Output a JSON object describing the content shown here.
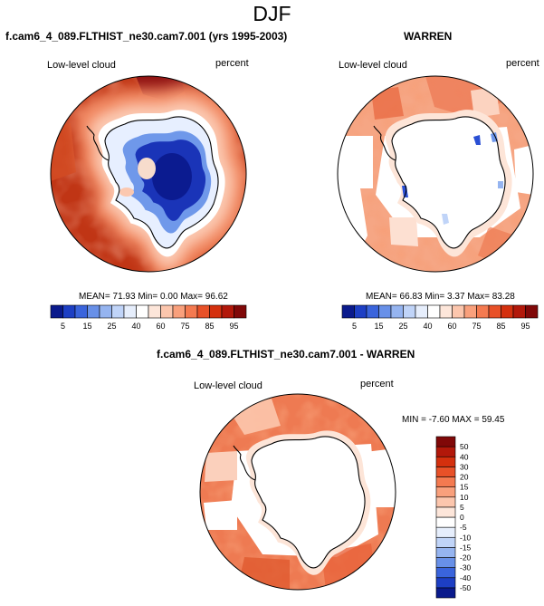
{
  "page_title": "DJF",
  "panels": [
    {
      "title": "f.cam6_4_089.FLTHIST_ne30.cam7.001 (yrs 1995-2003)",
      "left_label": "Low-level cloud",
      "right_label": "percent",
      "stats": "MEAN= 71.93 Min= 0.00 Max= 96.62"
    },
    {
      "title": "WARREN",
      "left_label": "Low-level cloud",
      "right_label": "percent",
      "stats": "MEAN= 66.83 Min= 3.37 Max= 83.28"
    },
    {
      "title": "f.cam6_4_089.FLTHIST_ne30.cam7.001 - WARREN",
      "left_label": "Low-level cloud",
      "right_label": "percent",
      "stats": "MIN = -7.60 MAX = 59.45"
    }
  ],
  "chart_data": [
    {
      "type": "heatmap",
      "projection": "south-polar-stereographic",
      "title": "f.cam6_4_089.FLTHIST_ne30.cam7.001 (yrs 1995-2003)",
      "variable": "Low-level cloud",
      "units": "percent",
      "mean": 71.93,
      "min": 0.0,
      "max": 96.62,
      "colorbar": {
        "orientation": "horizontal",
        "levels": [
          5,
          10,
          15,
          20,
          25,
          30,
          40,
          50,
          60,
          70,
          75,
          80,
          85,
          90,
          95
        ],
        "tick_labels": [
          "5",
          "15",
          "25",
          "40",
          "60",
          "75",
          "85",
          "95"
        ],
        "colors": [
          "#0a1a8c",
          "#1d3fc4",
          "#3a64dc",
          "#6890e8",
          "#95b4f0",
          "#c0d4f8",
          "#e6eefc",
          "#ffffff",
          "#fde6da",
          "#fcc6ad",
          "#f9a07c",
          "#f47a50",
          "#e85128",
          "#d4300e",
          "#b2180a",
          "#800808"
        ]
      }
    },
    {
      "type": "heatmap",
      "projection": "south-polar-stereographic",
      "title": "WARREN",
      "variable": "Low-level cloud",
      "units": "percent",
      "mean": 66.83,
      "min": 3.37,
      "max": 83.28,
      "colorbar": {
        "orientation": "horizontal",
        "levels": [
          5,
          10,
          15,
          20,
          25,
          30,
          40,
          50,
          60,
          70,
          75,
          80,
          85,
          90,
          95
        ],
        "tick_labels": [
          "5",
          "15",
          "25",
          "40",
          "60",
          "75",
          "85",
          "95"
        ],
        "colors": [
          "#0a1a8c",
          "#1d3fc4",
          "#3a64dc",
          "#6890e8",
          "#95b4f0",
          "#c0d4f8",
          "#e6eefc",
          "#ffffff",
          "#fde6da",
          "#fcc6ad",
          "#f9a07c",
          "#f47a50",
          "#e85128",
          "#d4300e",
          "#b2180a",
          "#800808"
        ]
      }
    },
    {
      "type": "heatmap",
      "projection": "south-polar-stereographic",
      "title": "f.cam6_4_089.FLTHIST_ne30.cam7.001 - WARREN",
      "variable": "Low-level cloud",
      "units": "percent",
      "min": -7.6,
      "max": 59.45,
      "colorbar": {
        "orientation": "vertical",
        "levels": [
          -50,
          -40,
          -30,
          -20,
          -15,
          -10,
          -5,
          0,
          5,
          10,
          15,
          20,
          30,
          40,
          50
        ],
        "tick_labels": [
          "-50",
          "-40",
          "-30",
          "-20",
          "-15",
          "-10",
          "-5",
          "0",
          "5",
          "10",
          "15",
          "20",
          "30",
          "40",
          "50"
        ],
        "colors": [
          "#0a1a8c",
          "#1d3fc4",
          "#3a64dc",
          "#6890e8",
          "#95b4f0",
          "#c0d4f8",
          "#e6eefc",
          "#ffffff",
          "#fde6da",
          "#fcc6ad",
          "#f9a07c",
          "#f47a50",
          "#e85128",
          "#d4300e",
          "#b2180a",
          "#800808"
        ]
      }
    }
  ]
}
